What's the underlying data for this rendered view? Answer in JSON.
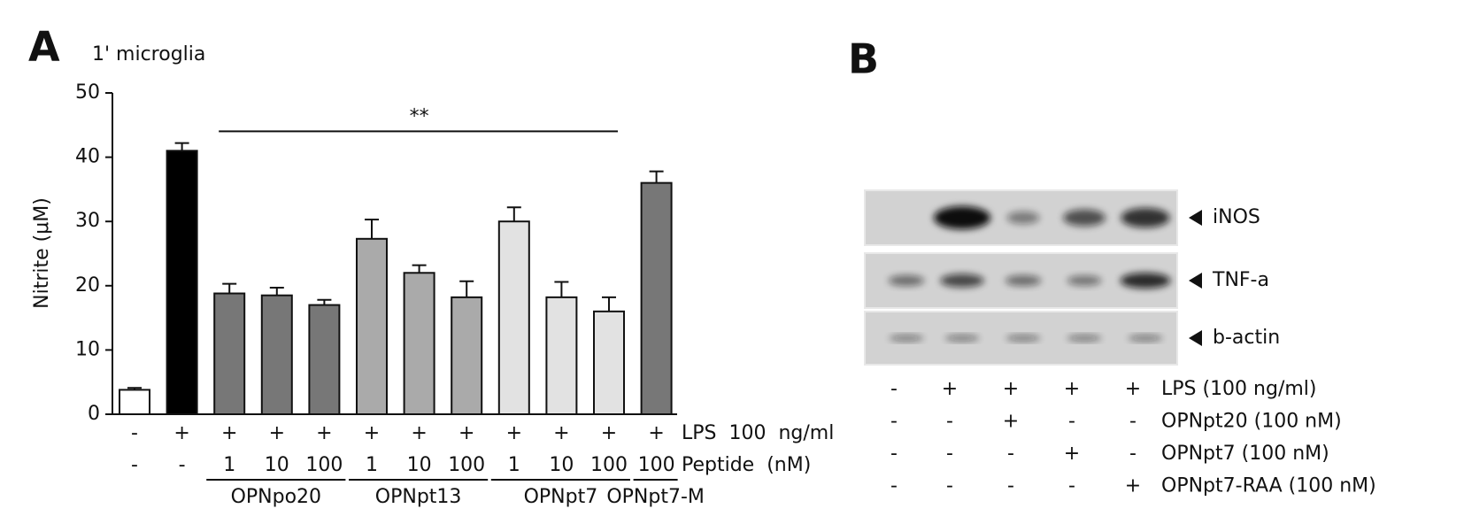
{
  "chart_data": {
    "type": "bar",
    "panel_label": "A",
    "title": "1' microglia",
    "ylabel": "Nitrite (μM)",
    "values": [
      3.8,
      41,
      18.8,
      18.5,
      17,
      27.3,
      22,
      18.2,
      30,
      18.2,
      16,
      36
    ],
    "errors": [
      0.3,
      1.2,
      1.5,
      1.2,
      0.8,
      3,
      1.2,
      2.5,
      2.2,
      2.4,
      2.2,
      1.8
    ],
    "colors": [
      "#ffffff",
      "#000000",
      "#777777",
      "#777777",
      "#777777",
      "#aaaaaa",
      "#aaaaaa",
      "#aaaaaa",
      "#e2e2e2",
      "#e2e2e2",
      "#e2e2e2",
      "#777777"
    ],
    "ylim": [
      0,
      50
    ],
    "yticks": [
      0,
      10,
      20,
      30,
      40,
      50
    ],
    "annotation": "**",
    "treatments": [
      {
        "label": "LPS  100  ng/ml",
        "values": [
          "-",
          "+",
          "+",
          "+",
          "+",
          "+",
          "+",
          "+",
          "+",
          "+",
          "+",
          "+"
        ]
      },
      {
        "label": "Peptide  (nM)",
        "values": [
          "-",
          "-",
          "1",
          "10",
          "100",
          "1",
          "10",
          "100",
          "1",
          "10",
          "100",
          "100"
        ]
      }
    ],
    "groups": [
      "OPNpo20",
      "OPNpt13",
      "OPNpt7",
      "OPNpt7-M"
    ]
  },
  "blot": {
    "panel_label": "B",
    "bands": [
      "iNOS",
      "TNF-a",
      "b-actin"
    ],
    "treatments": [
      {
        "label": "LPS (100 ng/ml)",
        "values": [
          "-",
          "+",
          "+",
          "+",
          "+"
        ]
      },
      {
        "label": "OPNpt20 (100 nM)",
        "values": [
          "-",
          "-",
          "+",
          "-",
          "-"
        ]
      },
      {
        "label": "OPNpt7 (100 nM)",
        "values": [
          "-",
          "-",
          "-",
          "+",
          "-"
        ]
      },
      {
        "label": "OPNpt7-RAA (100 nM)",
        "values": [
          "-",
          "-",
          "-",
          "-",
          "+"
        ]
      }
    ]
  }
}
